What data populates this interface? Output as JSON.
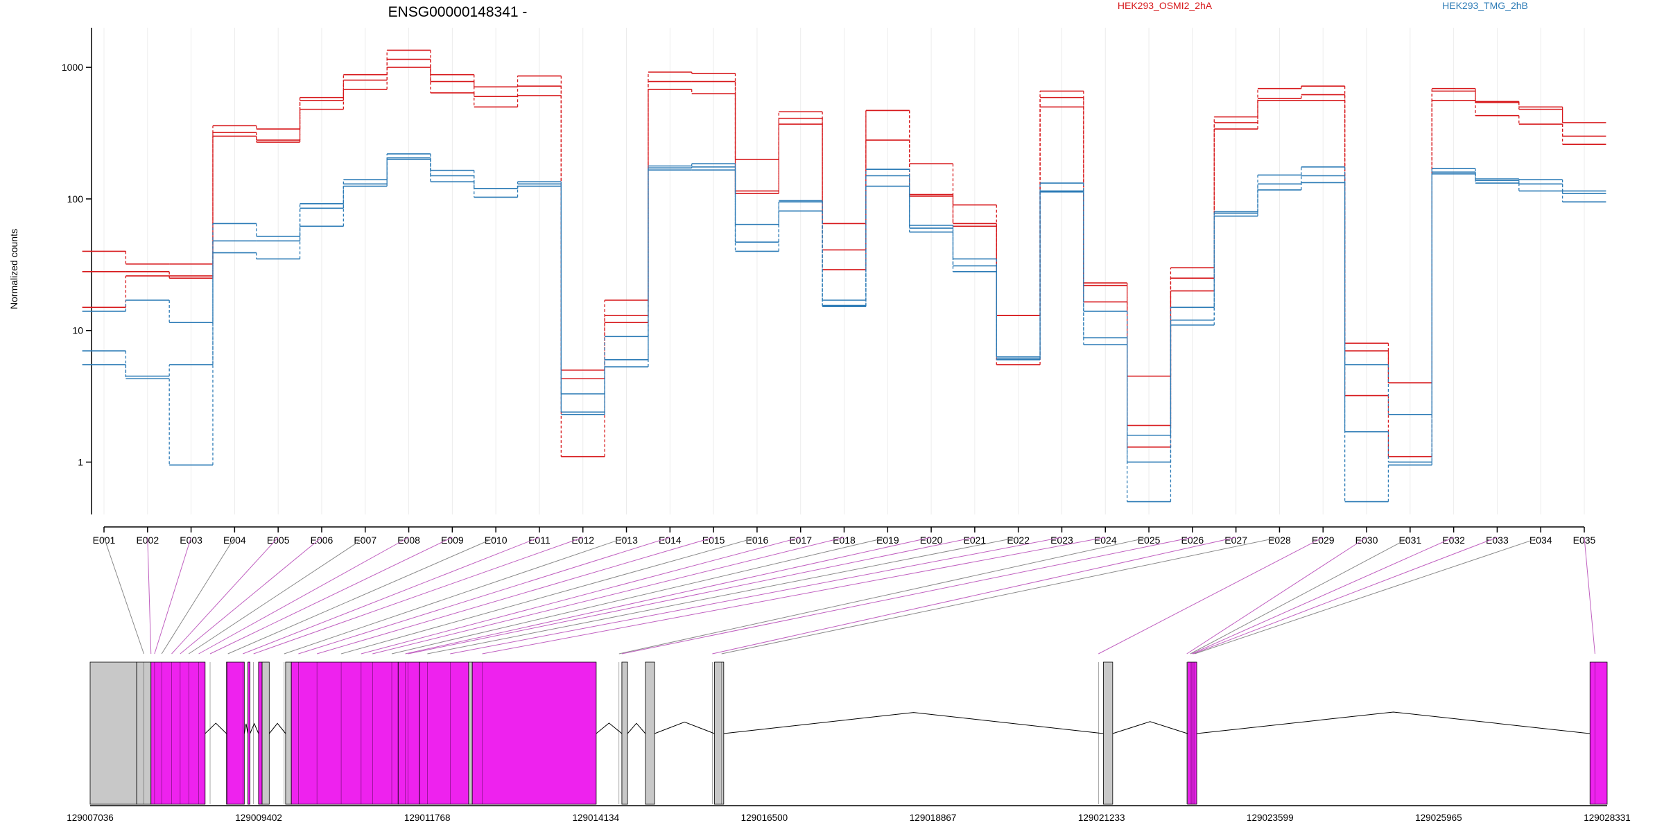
{
  "chart_data": {
    "type": "line",
    "title": "ENSG00000148341 -",
    "ylabel": "Normalized counts",
    "yscale": "log",
    "ylim": [
      0.4,
      2000
    ],
    "y_ticks": [
      1,
      10,
      100,
      1000
    ],
    "y_tick_labels": [
      "1",
      "10",
      "100",
      "1000"
    ],
    "legend": [
      {
        "name": "HEK293_OSMI2_2hA",
        "color": "#d7191c"
      },
      {
        "name": "HEK293_TMG_2hB",
        "color": "#2c7bb6"
      }
    ],
    "categories": [
      "E001",
      "E002",
      "E003",
      "E004",
      "E005",
      "E006",
      "E007",
      "E008",
      "E009",
      "E010",
      "E011",
      "E012",
      "E013",
      "E014",
      "E015",
      "E016",
      "E017",
      "E018",
      "E019",
      "E020",
      "E021",
      "E022",
      "E023",
      "E024",
      "E025",
      "E026",
      "E027",
      "E028",
      "E029",
      "E030",
      "E031",
      "E032",
      "E033",
      "E034",
      "E035"
    ],
    "series": [
      {
        "group": "HEK293_OSMI2_2hA",
        "color": "#d7191c",
        "values": [
          40,
          32,
          32,
          360,
          340,
          590,
          880,
          1350,
          880,
          710,
          860,
          5,
          17,
          920,
          900,
          200,
          460,
          65,
          470,
          185,
          90,
          13,
          660,
          23,
          4.5,
          30,
          420,
          690,
          720,
          8,
          4,
          690,
          550,
          500,
          380
        ]
      },
      {
        "group": "HEK293_OSMI2_2hA",
        "color": "#d7191c",
        "values": [
          28,
          28,
          26,
          320,
          280,
          560,
          800,
          1150,
          780,
          600,
          720,
          4.3,
          13,
          780,
          780,
          115,
          410,
          41,
          470,
          108,
          65,
          13,
          590,
          22,
          1.9,
          25,
          380,
          580,
          620,
          7,
          4,
          660,
          540,
          480,
          300
        ]
      },
      {
        "group": "HEK293_OSMI2_2hA",
        "color": "#d7191c",
        "values": [
          15,
          26,
          25,
          300,
          270,
          480,
          680,
          1000,
          640,
          500,
          610,
          1.1,
          11.5,
          680,
          630,
          110,
          370,
          29,
          280,
          105,
          62,
          5.5,
          500,
          16.5,
          1.3,
          20,
          340,
          560,
          560,
          3.2,
          1.1,
          560,
          430,
          370,
          260
        ]
      },
      {
        "group": "HEK293_TMG_2hB",
        "color": "#2c7bb6",
        "values": [
          14,
          17,
          11.5,
          65,
          52,
          92,
          140,
          220,
          165,
          120,
          135,
          3.3,
          9,
          178,
          185,
          64,
          97,
          17,
          168,
          63,
          35,
          6.3,
          132,
          14,
          1.6,
          15,
          80,
          152,
          175,
          5.5,
          2.3,
          170,
          142,
          140,
          115
        ]
      },
      {
        "group": "HEK293_TMG_2hB",
        "color": "#2c7bb6",
        "values": [
          7,
          4.5,
          5.5,
          48,
          48,
          85,
          130,
          205,
          150,
          120,
          130,
          2.4,
          6,
          172,
          175,
          47,
          95,
          15.5,
          150,
          60,
          31,
          6.1,
          115,
          8.8,
          1,
          12,
          78,
          130,
          150,
          1.7,
          1,
          160,
          138,
          130,
          110
        ]
      },
      {
        "group": "HEK293_TMG_2hB",
        "color": "#2c7bb6",
        "values": [
          5.5,
          4.3,
          0.95,
          39,
          35,
          62,
          125,
          200,
          135,
          103,
          125,
          2.3,
          5.3,
          166,
          166,
          40,
          81,
          15.2,
          125,
          56,
          28,
          6,
          113,
          7.8,
          0.5,
          11,
          74,
          117,
          133,
          0.5,
          0.95,
          155,
          132,
          115,
          95
        ]
      }
    ],
    "exon_blocks": [
      {
        "start": 129007036,
        "end": 129007690,
        "color": "#c8c8c8"
      },
      {
        "start": 129007690,
        "end": 129007890,
        "color": "#c8c8c8"
      },
      {
        "start": 129007890,
        "end": 129008650,
        "color": "#ee22ee"
      },
      {
        "start": 129008950,
        "end": 129009200,
        "color": "#ee22ee"
      },
      {
        "start": 129009250,
        "end": 129009280,
        "color": "#ee22ee"
      },
      {
        "start": 129009400,
        "end": 129009450,
        "color": "#ee22ee"
      },
      {
        "start": 129009450,
        "end": 129009550,
        "color": "#c8c8c8"
      },
      {
        "start": 129009780,
        "end": 129009860,
        "color": "#c8c8c8"
      },
      {
        "start": 129009860,
        "end": 129011360,
        "color": "#ee22ee"
      },
      {
        "start": 129011360,
        "end": 129011660,
        "color": "#ee22ee"
      },
      {
        "start": 129011660,
        "end": 129012350,
        "color": "#ee22ee"
      },
      {
        "start": 129012350,
        "end": 129012400,
        "color": "#c8c8c8"
      },
      {
        "start": 129012400,
        "end": 129014140,
        "color": "#ee22ee"
      },
      {
        "start": 129014500,
        "end": 129014580,
        "color": "#c8c8c8"
      },
      {
        "start": 129014830,
        "end": 129014960,
        "color": "#c8c8c8"
      },
      {
        "start": 129015800,
        "end": 129015930,
        "color": "#c8c8c8"
      },
      {
        "start": 129021260,
        "end": 129021390,
        "color": "#c8c8c8"
      },
      {
        "start": 129022440,
        "end": 129022570,
        "color": "#ee22ee"
      },
      {
        "start": 129028090,
        "end": 129028331,
        "color": "#ee22ee"
      }
    ],
    "exon_coords": [
      129007790,
      129007890,
      129007940,
      129008040,
      129008180,
      129008300,
      129008420,
      129008560,
      129008720,
      129008970,
      129009180,
      129009330,
      129009760,
      129009960,
      129010220,
      129010560,
      129010840,
      129011000,
      129011270,
      129011460,
      129011500,
      129011770,
      129012090,
      129012540,
      129014460,
      129014500,
      129015770,
      129015900,
      129021190,
      129022430,
      129022480,
      129022500,
      129022520,
      129022540,
      129028160
    ],
    "x_ticks": [
      129007036,
      129009402,
      129011768,
      129014134,
      129016500,
      129018867,
      129021233,
      129023599,
      129025965,
      129028331
    ],
    "x_tick_labels": [
      "129007036",
      "129009402",
      "129011768",
      "129014134",
      "129016500",
      "129018867",
      "129021233",
      "129023599",
      "129025965",
      "129028331"
    ]
  }
}
